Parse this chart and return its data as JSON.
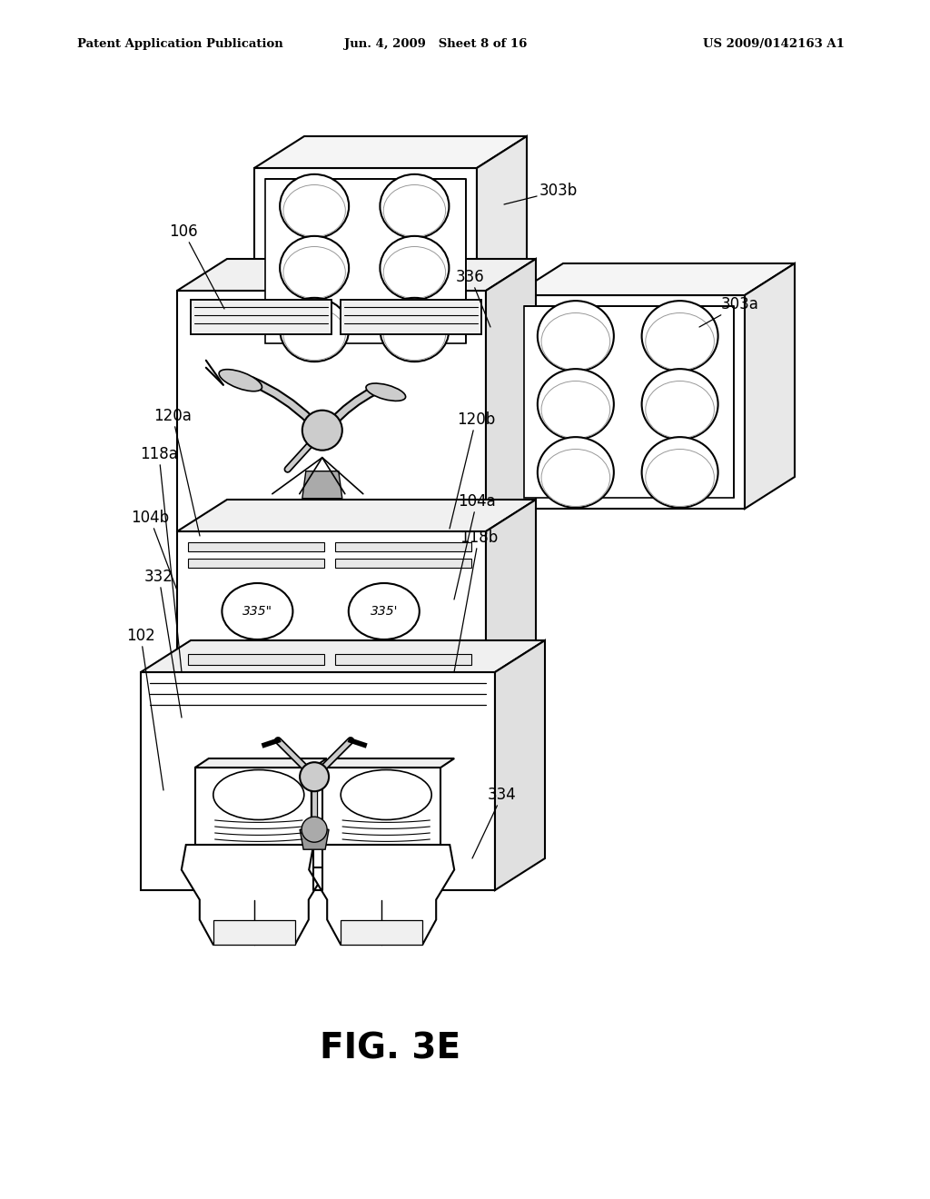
{
  "title": "FIG. 3E",
  "header_left": "Patent Application Publication",
  "header_center": "Jun. 4, 2009   Sheet 8 of 16",
  "header_right": "US 2009/0142163 A1",
  "background_color": "#ffffff",
  "lw": 1.5,
  "label_fs": 12
}
